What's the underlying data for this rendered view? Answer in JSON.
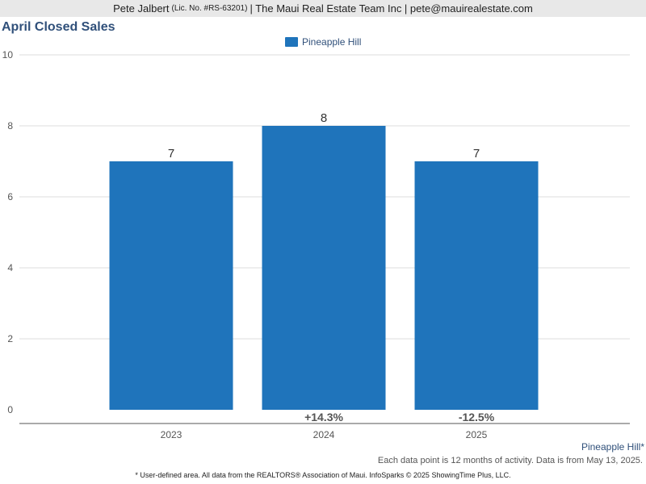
{
  "header": {
    "agent_name": "Pete Jalbert",
    "license": "(Lic. No. #RS-63201)",
    "company": "| The Maui Real Estate Team Inc | pete@mauirealestate.com"
  },
  "chart_data": {
    "type": "bar",
    "title": "April Closed Sales",
    "categories": [
      "2023",
      "2024",
      "2025"
    ],
    "series": [
      {
        "name": "Pineapple Hill",
        "values": [
          7,
          8,
          7
        ],
        "color": "#1f74bb"
      }
    ],
    "percent_change": [
      "",
      "+14.3%",
      "-12.5%"
    ],
    "ylim": [
      0,
      10
    ],
    "yticks": [
      0,
      2,
      4,
      6,
      8,
      10
    ],
    "grid": true,
    "legend_position": "top-center"
  },
  "footer": {
    "area_tag": "Pineapple Hill*",
    "note": "Each data point is 12 months of activity. Data is from May 13, 2025.",
    "disclaimer": "* User-defined area. All data from the REALTORS® Association of Maui. InfoSparks © 2025 ShowingTime Plus, LLC."
  }
}
